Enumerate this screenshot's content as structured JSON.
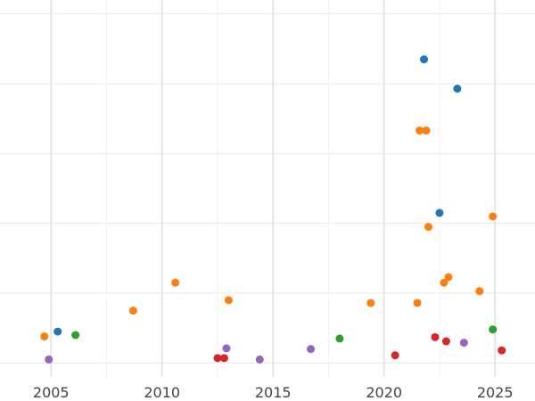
{
  "chart_data": {
    "type": "scatter",
    "title": "",
    "xlabel": "",
    "ylabel": "",
    "x_ticks": [
      2005,
      2010,
      2015,
      2020,
      2025
    ],
    "xlim": [
      2002.7,
      2026.8
    ],
    "ylim": [
      -0.2,
      5.2
    ],
    "y_gridlines": [
      0,
      1,
      2,
      3,
      4,
      5
    ],
    "grid": true,
    "legend": "none",
    "series": [
      {
        "color": "#1f77b4",
        "points": [
          {
            "x": 2005.3,
            "y": 0.45
          },
          {
            "x": 2021.8,
            "y": 4.35
          },
          {
            "x": 2023.3,
            "y": 3.93
          },
          {
            "x": 2022.5,
            "y": 2.15
          }
        ]
      },
      {
        "color": "#ff7f0e",
        "points": [
          {
            "x": 2004.7,
            "y": 0.38
          },
          {
            "x": 2008.7,
            "y": 0.75
          },
          {
            "x": 2010.6,
            "y": 1.15
          },
          {
            "x": 2013.0,
            "y": 0.9
          },
          {
            "x": 2019.4,
            "y": 0.86
          },
          {
            "x": 2021.5,
            "y": 0.86
          },
          {
            "x": 2021.6,
            "y": 3.33
          },
          {
            "x": 2021.9,
            "y": 3.33
          },
          {
            "x": 2022.0,
            "y": 1.95
          },
          {
            "x": 2022.7,
            "y": 1.15
          },
          {
            "x": 2022.9,
            "y": 1.23
          },
          {
            "x": 2024.3,
            "y": 1.03
          },
          {
            "x": 2024.9,
            "y": 2.1
          }
        ]
      },
      {
        "color": "#2ca02c",
        "points": [
          {
            "x": 2006.1,
            "y": 0.4
          },
          {
            "x": 2018.0,
            "y": 0.35
          },
          {
            "x": 2024.9,
            "y": 0.48
          }
        ]
      },
      {
        "color": "#d62728",
        "points": [
          {
            "x": 2012.5,
            "y": 0.07
          },
          {
            "x": 2012.8,
            "y": 0.07
          },
          {
            "x": 2020.5,
            "y": 0.11
          },
          {
            "x": 2022.3,
            "y": 0.37
          },
          {
            "x": 2022.8,
            "y": 0.31
          },
          {
            "x": 2025.3,
            "y": 0.18
          }
        ]
      },
      {
        "color": "#9467bd",
        "points": [
          {
            "x": 2004.9,
            "y": 0.05
          },
          {
            "x": 2012.9,
            "y": 0.21
          },
          {
            "x": 2014.4,
            "y": 0.05
          },
          {
            "x": 2016.7,
            "y": 0.2
          },
          {
            "x": 2023.6,
            "y": 0.29
          }
        ]
      }
    ]
  }
}
